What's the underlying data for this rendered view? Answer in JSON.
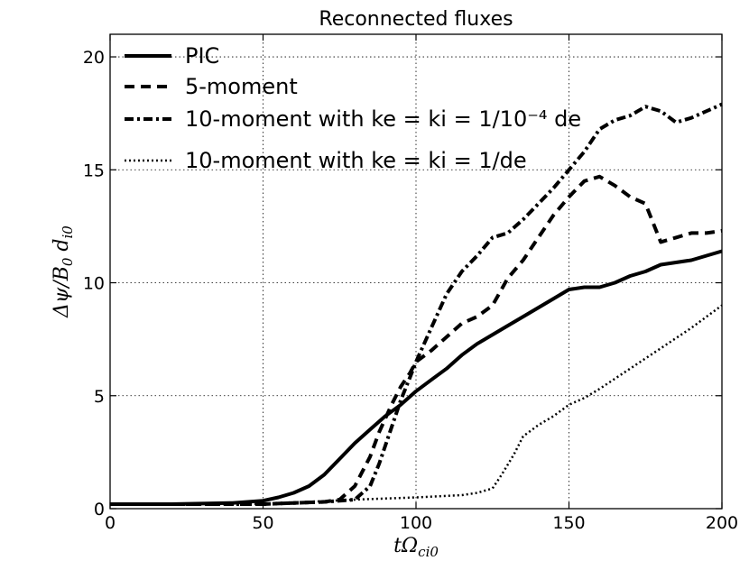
{
  "chart_data": {
    "type": "line",
    "title": "Reconnected fluxes",
    "xlabel": "tΩci0",
    "ylabel": "Δψ/B0 di0",
    "xlim": [
      0,
      200
    ],
    "ylim": [
      0,
      21
    ],
    "x_ticks": [
      "0",
      "50",
      "100",
      "150",
      "200"
    ],
    "y_ticks": [
      "0",
      "5",
      "10",
      "15",
      "20"
    ],
    "grid": true,
    "legend_position": "top-left",
    "legend": {
      "pic": "PIC",
      "five_moment": "5-moment",
      "ten_moment_a": "10-moment with ke = ki = 1/10⁻⁴ de",
      "ten_moment_b": "10-moment with ke = ki = 1/de"
    },
    "series": [
      {
        "name": "PIC",
        "style": "solid",
        "x": [
          0,
          20,
          40,
          50,
          55,
          60,
          65,
          70,
          75,
          80,
          85,
          90,
          95,
          100,
          105,
          110,
          115,
          120,
          125,
          130,
          135,
          140,
          145,
          150,
          155,
          160,
          165,
          170,
          175,
          180,
          185,
          190,
          195,
          200
        ],
        "y": [
          0.2,
          0.2,
          0.25,
          0.35,
          0.5,
          0.7,
          1.0,
          1.5,
          2.2,
          2.9,
          3.5,
          4.1,
          4.6,
          5.2,
          5.7,
          6.2,
          6.8,
          7.3,
          7.7,
          8.1,
          8.5,
          8.9,
          9.3,
          9.7,
          9.8,
          9.8,
          10.0,
          10.3,
          10.5,
          10.8,
          10.9,
          11.0,
          11.2,
          11.4
        ]
      },
      {
        "name": "5-moment",
        "style": "dashed",
        "x": [
          0,
          50,
          60,
          70,
          75,
          80,
          85,
          88,
          92,
          95,
          98,
          100,
          105,
          110,
          115,
          120,
          125,
          130,
          135,
          140,
          145,
          150,
          155,
          160,
          165,
          170,
          175,
          180,
          185,
          190,
          195,
          200
        ],
        "y": [
          0.2,
          0.2,
          0.25,
          0.3,
          0.4,
          1.0,
          2.3,
          3.4,
          4.6,
          5.4,
          6.0,
          6.5,
          7.0,
          7.6,
          8.2,
          8.5,
          9.0,
          10.2,
          11.0,
          12.0,
          13.0,
          13.8,
          14.5,
          14.7,
          14.3,
          13.8,
          13.5,
          11.8,
          12.0,
          12.2,
          12.2,
          12.3
        ]
      },
      {
        "name": "10-moment with ke = ki = 1/10⁻⁴ de",
        "style": "dashdot",
        "x": [
          0,
          50,
          70,
          80,
          85,
          88,
          92,
          95,
          98,
          100,
          105,
          110,
          115,
          120,
          125,
          130,
          135,
          140,
          145,
          150,
          155,
          160,
          165,
          170,
          175,
          180,
          185,
          190,
          195,
          200
        ],
        "y": [
          0.2,
          0.2,
          0.3,
          0.4,
          1.0,
          2.0,
          3.6,
          4.8,
          5.8,
          6.5,
          8.0,
          9.5,
          10.5,
          11.2,
          12.0,
          12.2,
          12.8,
          13.5,
          14.2,
          15.0,
          15.8,
          16.8,
          17.2,
          17.4,
          17.8,
          17.6,
          17.1,
          17.3,
          17.6,
          17.9
        ]
      },
      {
        "name": "10-moment with ke = ki = 1/de",
        "style": "dotted",
        "x": [
          0,
          50,
          80,
          100,
          115,
          120,
          125,
          128,
          132,
          135,
          140,
          145,
          150,
          155,
          160,
          170,
          180,
          190,
          200
        ],
        "y": [
          0.2,
          0.2,
          0.4,
          0.5,
          0.6,
          0.7,
          0.9,
          1.5,
          2.4,
          3.2,
          3.7,
          4.1,
          4.6,
          4.9,
          5.3,
          6.2,
          7.1,
          8.0,
          9.0
        ]
      }
    ]
  }
}
